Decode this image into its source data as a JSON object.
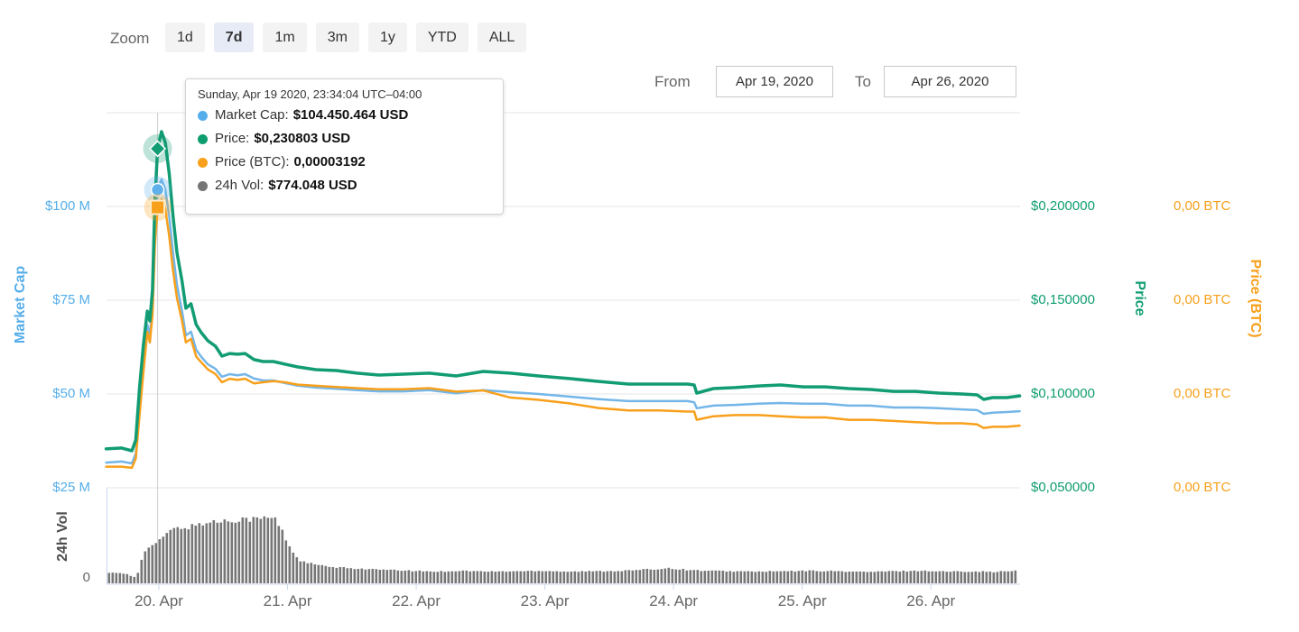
{
  "page": {
    "background": "#ffffff"
  },
  "toolbar": {
    "zoom_label": "Zoom",
    "range_buttons": [
      {
        "label": "1d",
        "selected": false
      },
      {
        "label": "7d",
        "selected": true
      },
      {
        "label": "1m",
        "selected": false
      },
      {
        "label": "3m",
        "selected": false
      },
      {
        "label": "1y",
        "selected": false
      },
      {
        "label": "YTD",
        "selected": false
      },
      {
        "label": "ALL",
        "selected": false
      }
    ],
    "from_label": "From",
    "from_value": "Apr 19, 2020",
    "to_label": "To",
    "to_value": "Apr 26, 2020"
  },
  "tooltip": {
    "header": "Sunday, Apr 19 2020, 23:34:04 UTC–04:00",
    "rows": [
      {
        "series": "Market Cap",
        "label": "Market Cap:",
        "value": "$104.450.464 USD",
        "color": "#55aeea"
      },
      {
        "series": "Price",
        "label": "Price:",
        "value": "$0,230803 USD",
        "color": "#0f9d70"
      },
      {
        "series": "Price (BTC)",
        "label": "Price (BTC):",
        "value": "0,00003192",
        "color": "#f8a01b"
      },
      {
        "series": "24h Vol",
        "label": "24h Vol:",
        "value": "$774.048 USD",
        "color": "#757575"
      }
    ]
  },
  "axes": {
    "market_cap": {
      "title": "Market Cap",
      "color": "#55aeea",
      "tick_labels": [
        "$100 M",
        "$75 M",
        "$50 M",
        "$25 M"
      ],
      "tick_values": [
        100,
        75,
        50,
        25
      ],
      "range": [
        25,
        125
      ],
      "unit": "million USD"
    },
    "price": {
      "title": "Price",
      "color": "#0f9d70",
      "tick_labels": [
        "$0,200000",
        "$0,150000",
        "$0,100000",
        "$0,050000"
      ],
      "tick_values": [
        0.2,
        0.15,
        0.1,
        0.05
      ],
      "range": [
        0.05,
        0.25
      ],
      "unit": "USD"
    },
    "price_btc": {
      "title": "Price (BTC)",
      "color": "#f8a01b",
      "tick_labels": [
        "0,00 BTC",
        "0,00 BTC",
        "0,00 BTC",
        "0,00 BTC"
      ],
      "range": [
        8e-06,
        4e-05
      ],
      "unit": "BTC"
    },
    "volume": {
      "title": "24h Vol",
      "color": "#4d4d4d",
      "zero_label": "0",
      "range": [
        0,
        1794000
      ],
      "unit": "USD"
    },
    "x": {
      "tick_labels": [
        "20. Apr",
        "21. Apr",
        "22. Apr",
        "23. Apr",
        "24. Apr",
        "25. Apr",
        "26. Apr"
      ],
      "tick_values": [
        20,
        21,
        22,
        23,
        24,
        25,
        26
      ],
      "range": [
        19.593,
        26.693
      ],
      "unit": "day of April 2020"
    }
  },
  "chart_data": {
    "type": "line",
    "x_unit": "day of April 2020",
    "x": [
      19.59,
      19.71,
      19.79,
      19.82,
      19.85,
      19.88,
      19.91,
      19.93,
      19.95,
      19.97,
      19.99,
      20.02,
      20.05,
      20.08,
      20.11,
      20.14,
      20.18,
      20.21,
      20.25,
      20.29,
      20.33,
      20.38,
      20.44,
      20.49,
      20.55,
      20.61,
      20.67,
      20.74,
      20.81,
      20.89,
      20.98,
      21.08,
      21.22,
      21.38,
      21.54,
      21.71,
      21.9,
      22.1,
      22.31,
      22.52,
      22.73,
      22.95,
      23.19,
      23.42,
      23.65,
      23.89,
      24.11,
      24.16,
      24.18,
      24.31,
      24.48,
      24.66,
      24.83,
      25.01,
      25.18,
      25.36,
      25.53,
      25.71,
      25.88,
      26.06,
      26.24,
      26.36,
      26.41,
      26.48,
      26.59,
      26.69
    ],
    "series": [
      {
        "name": "Market Cap",
        "type": "line",
        "axis": "market_cap",
        "color": "#74b6e8",
        "unit": "million USD",
        "values": [
          31.7,
          32.0,
          31.5,
          34.1,
          46.9,
          58.9,
          68.5,
          65.6,
          73.3,
          93.8,
          104.45,
          107.2,
          104.6,
          97.4,
          87.7,
          79.1,
          72.1,
          65.6,
          66.6,
          61.8,
          59.9,
          57.9,
          56.7,
          54.6,
          55.3,
          55.0,
          55.3,
          54.1,
          53.6,
          53.6,
          52.9,
          52.2,
          51.7,
          51.4,
          51.0,
          50.7,
          50.7,
          51.0,
          50.2,
          51.0,
          50.5,
          50.0,
          49.3,
          48.6,
          48.1,
          48.1,
          48.1,
          47.8,
          46.2,
          46.9,
          47.1,
          47.4,
          47.6,
          47.4,
          47.4,
          46.9,
          46.9,
          46.4,
          46.4,
          46.2,
          45.9,
          45.7,
          44.7,
          45.0,
          45.2,
          45.4
        ]
      },
      {
        "name": "Price",
        "type": "line",
        "axis": "price",
        "color": "#129c74",
        "unit": "USD",
        "values": [
          0.0707,
          0.0712,
          0.0697,
          0.0755,
          0.1034,
          0.1264,
          0.1442,
          0.1389,
          0.1553,
          0.2043,
          0.2308,
          0.2399,
          0.2341,
          0.2178,
          0.1947,
          0.1755,
          0.1601,
          0.1457,
          0.1481,
          0.137,
          0.1327,
          0.1284,
          0.1255,
          0.1202,
          0.1216,
          0.1212,
          0.1216,
          0.1183,
          0.1173,
          0.1173,
          0.1159,
          0.1144,
          0.113,
          0.1125,
          0.1111,
          0.1101,
          0.1106,
          0.1111,
          0.1096,
          0.112,
          0.1111,
          0.1096,
          0.1082,
          0.1067,
          0.1053,
          0.1053,
          0.1053,
          0.1048,
          0.1005,
          0.1029,
          0.1034,
          0.1043,
          0.1048,
          0.1038,
          0.1038,
          0.1029,
          0.1024,
          0.1014,
          0.1014,
          0.1005,
          0.1,
          0.0995,
          0.0971,
          0.0981,
          0.0981,
          0.099
        ]
      },
      {
        "name": "Price (BTC)",
        "type": "line",
        "axis": "price_btc",
        "color": "#f8a01b",
        "unit": "BTC",
        "values": [
          9.8e-06,
          9.8e-06,
          9.7e-06,
          1.05e-05,
          1.42e-05,
          1.79e-05,
          2.13e-05,
          2.04e-05,
          2.27e-05,
          2.88e-05,
          3.192e-05,
          3.26e-05,
          3.18e-05,
          2.95e-05,
          2.65e-05,
          2.42e-05,
          2.22e-05,
          2.04e-05,
          2.07e-05,
          1.92e-05,
          1.87e-05,
          1.81e-05,
          1.77e-05,
          1.7e-05,
          1.73e-05,
          1.72e-05,
          1.73e-05,
          1.69e-05,
          1.7e-05,
          1.71e-05,
          1.7e-05,
          1.68e-05,
          1.67e-05,
          1.66e-05,
          1.65e-05,
          1.64e-05,
          1.64e-05,
          1.65e-05,
          1.62e-05,
          1.63e-05,
          1.57e-05,
          1.55e-05,
          1.52e-05,
          1.48e-05,
          1.46e-05,
          1.46e-05,
          1.45e-05,
          1.45e-05,
          1.38e-05,
          1.41e-05,
          1.42e-05,
          1.42e-05,
          1.41e-05,
          1.4e-05,
          1.4e-05,
          1.38e-05,
          1.38e-05,
          1.37e-05,
          1.36e-05,
          1.35e-05,
          1.35e-05,
          1.34e-05,
          1.31e-05,
          1.32e-05,
          1.32e-05,
          1.33e-05
        ]
      }
    ],
    "volume_series": {
      "name": "24h Vol",
      "type": "column",
      "axis": "volume",
      "color": "#767676",
      "unit": "USD",
      "x": [
        19.59,
        19.75,
        19.8,
        19.83,
        19.87,
        19.93,
        19.99,
        20.05,
        20.12,
        20.19,
        20.26,
        20.31,
        20.42,
        20.56,
        20.66,
        20.76,
        20.83,
        20.9,
        20.93,
        20.97,
        21.0,
        21.04,
        21.08,
        21.11,
        21.18,
        21.25,
        21.32,
        21.46,
        21.6,
        21.74,
        21.95,
        22.16,
        22.35,
        22.56,
        22.77,
        22.98,
        23.19,
        23.4,
        23.61,
        23.75,
        23.89,
        23.96,
        24.03,
        24.1,
        24.24,
        24.45,
        24.66,
        24.87,
        25.08,
        25.29,
        25.5,
        25.71,
        25.92,
        26.13,
        26.34,
        26.48,
        26.69
      ],
      "values": [
        211000,
        183000,
        123000,
        141000,
        528000,
        739000,
        774048,
        967000,
        1056000,
        1091000,
        1108000,
        1161000,
        1196000,
        1231000,
        1267000,
        1249000,
        1284000,
        1267000,
        1143000,
        967000,
        792000,
        616000,
        493000,
        422000,
        387000,
        352000,
        317000,
        299000,
        281000,
        264000,
        246000,
        229000,
        246000,
        229000,
        235000,
        246000,
        229000,
        235000,
        246000,
        264000,
        281000,
        299000,
        281000,
        264000,
        246000,
        235000,
        229000,
        235000,
        246000,
        235000,
        222000,
        235000,
        246000,
        229000,
        235000,
        222000,
        246000
      ]
    },
    "hover_point": {
      "day": 19.99,
      "datetime": "Sunday, Apr 19 2020, 23:34:04 UTC–04:00",
      "markers": [
        {
          "series": "Price",
          "shape": "diamond",
          "color": "#129c74",
          "value": 0.230803
        },
        {
          "series": "Market Cap",
          "shape": "circle",
          "color": "#5fb0ea",
          "value": 104.450464
        },
        {
          "series": "Price (BTC)",
          "shape": "square",
          "color": "#f8a01b",
          "value": 3.192e-05
        }
      ]
    }
  },
  "colors": {
    "gridline": "#e6e6e6",
    "axis_line": "#ccd6eb",
    "crosshair": "#cfcfcf",
    "bar": "#767676",
    "button_bg": "#f3f3f3",
    "button_selected_bg": "#e6ebf5",
    "text_muted": "#666666",
    "text_dark": "#333333"
  }
}
